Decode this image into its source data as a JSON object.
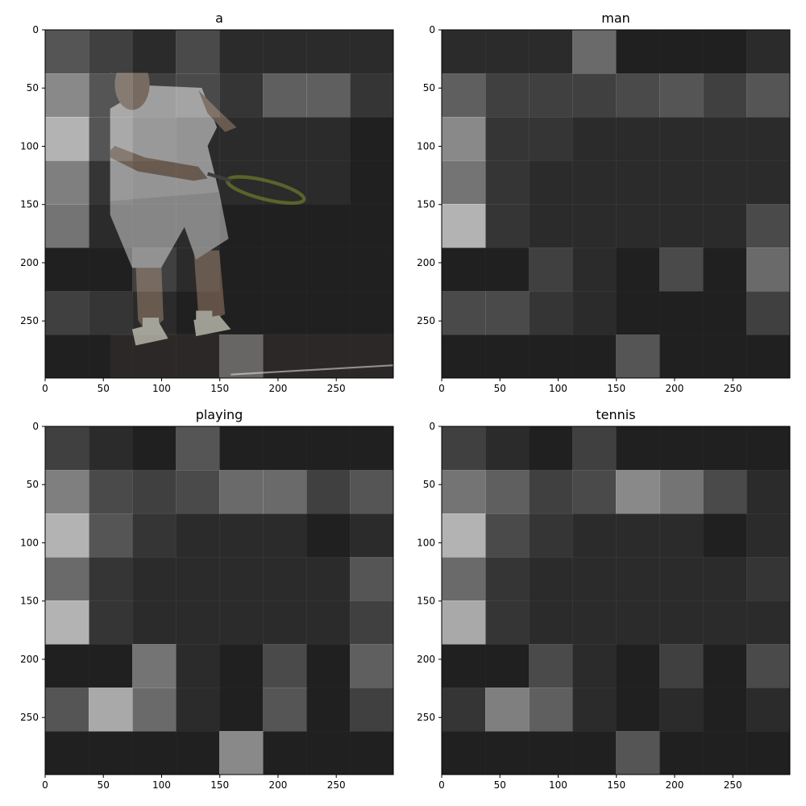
{
  "chart_data": [
    {
      "type": "heatmap",
      "title": "a",
      "xlabel": "",
      "ylabel": "",
      "xlim": [
        0,
        299
      ],
      "ylim": [
        299,
        0
      ],
      "xticks": [
        "0",
        "50",
        "100",
        "150",
        "200",
        "250"
      ],
      "yticks": [
        "0",
        "50",
        "100",
        "150",
        "200",
        "250"
      ],
      "cell_grid_size": [
        8,
        8
      ],
      "cell_brightness": [
        [
          0.3,
          0.2,
          0.1,
          0.25,
          0.1,
          0.1,
          0.1,
          0.1
        ],
        [
          0.55,
          0.3,
          0.2,
          0.25,
          0.15,
          0.35,
          0.35,
          0.15
        ],
        [
          0.75,
          0.3,
          0.15,
          0.1,
          0.1,
          0.1,
          0.1,
          0.05
        ],
        [
          0.5,
          0.15,
          0.1,
          0.1,
          0.1,
          0.1,
          0.1,
          0.05
        ],
        [
          0.45,
          0.1,
          0.1,
          0.1,
          0.05,
          0.05,
          0.05,
          0.05
        ],
        [
          0.05,
          0.05,
          0.2,
          0.1,
          0.05,
          0.05,
          0.05,
          0.05
        ],
        [
          0.2,
          0.15,
          0.1,
          0.05,
          0.05,
          0.05,
          0.05,
          0.05
        ],
        [
          0.05,
          0.05,
          0.05,
          0.05,
          0.35,
          0.05,
          0.05,
          0.05
        ]
      ]
    },
    {
      "type": "heatmap",
      "title": "man",
      "xlabel": "",
      "ylabel": "",
      "xlim": [
        0,
        299
      ],
      "ylim": [
        299,
        0
      ],
      "xticks": [
        "0",
        "50",
        "100",
        "150",
        "200",
        "250"
      ],
      "yticks": [
        "0",
        "50",
        "100",
        "150",
        "200",
        "250"
      ],
      "cell_grid_size": [
        8,
        8
      ],
      "cell_brightness": [
        [
          0.1,
          0.1,
          0.1,
          0.4,
          0.05,
          0.05,
          0.05,
          0.1
        ],
        [
          0.35,
          0.2,
          0.2,
          0.2,
          0.25,
          0.3,
          0.2,
          0.3
        ],
        [
          0.55,
          0.15,
          0.15,
          0.1,
          0.1,
          0.1,
          0.1,
          0.1
        ],
        [
          0.45,
          0.15,
          0.1,
          0.1,
          0.1,
          0.1,
          0.1,
          0.1
        ],
        [
          0.75,
          0.15,
          0.1,
          0.1,
          0.1,
          0.1,
          0.1,
          0.25
        ],
        [
          0.05,
          0.05,
          0.2,
          0.1,
          0.05,
          0.25,
          0.05,
          0.4
        ],
        [
          0.25,
          0.25,
          0.15,
          0.1,
          0.05,
          0.05,
          0.05,
          0.2
        ],
        [
          0.05,
          0.05,
          0.05,
          0.05,
          0.3,
          0.05,
          0.05,
          0.05
        ]
      ]
    },
    {
      "type": "heatmap",
      "title": "playing",
      "xlabel": "",
      "ylabel": "",
      "xlim": [
        0,
        299
      ],
      "ylim": [
        299,
        0
      ],
      "xticks": [
        "0",
        "50",
        "100",
        "150",
        "200",
        "250"
      ],
      "yticks": [
        "0",
        "50",
        "100",
        "150",
        "200",
        "250"
      ],
      "cell_grid_size": [
        8,
        8
      ],
      "cell_brightness": [
        [
          0.2,
          0.1,
          0.05,
          0.3,
          0.05,
          0.05,
          0.05,
          0.05
        ],
        [
          0.5,
          0.25,
          0.2,
          0.25,
          0.4,
          0.4,
          0.2,
          0.3
        ],
        [
          0.75,
          0.3,
          0.15,
          0.1,
          0.1,
          0.1,
          0.05,
          0.1
        ],
        [
          0.4,
          0.15,
          0.1,
          0.1,
          0.1,
          0.1,
          0.1,
          0.3
        ],
        [
          0.75,
          0.15,
          0.1,
          0.1,
          0.1,
          0.1,
          0.1,
          0.2
        ],
        [
          0.05,
          0.05,
          0.45,
          0.1,
          0.05,
          0.25,
          0.05,
          0.35
        ],
        [
          0.3,
          0.7,
          0.4,
          0.1,
          0.05,
          0.3,
          0.05,
          0.2
        ],
        [
          0.05,
          0.05,
          0.05,
          0.05,
          0.55,
          0.05,
          0.05,
          0.05
        ]
      ]
    },
    {
      "type": "heatmap",
      "title": "tennis",
      "xlabel": "",
      "ylabel": "",
      "xlim": [
        0,
        299
      ],
      "ylim": [
        299,
        0
      ],
      "xticks": [
        "0",
        "50",
        "100",
        "150",
        "200",
        "250"
      ],
      "yticks": [
        "0",
        "50",
        "100",
        "150",
        "200",
        "250"
      ],
      "cell_grid_size": [
        8,
        8
      ],
      "cell_brightness": [
        [
          0.2,
          0.1,
          0.05,
          0.2,
          0.05,
          0.05,
          0.05,
          0.05
        ],
        [
          0.45,
          0.35,
          0.2,
          0.25,
          0.55,
          0.45,
          0.25,
          0.1
        ],
        [
          0.75,
          0.25,
          0.15,
          0.1,
          0.1,
          0.1,
          0.05,
          0.1
        ],
        [
          0.4,
          0.15,
          0.1,
          0.1,
          0.1,
          0.1,
          0.1,
          0.15
        ],
        [
          0.7,
          0.15,
          0.1,
          0.1,
          0.1,
          0.1,
          0.1,
          0.1
        ],
        [
          0.05,
          0.05,
          0.25,
          0.1,
          0.05,
          0.2,
          0.05,
          0.25
        ],
        [
          0.15,
          0.5,
          0.35,
          0.1,
          0.05,
          0.1,
          0.05,
          0.1
        ],
        [
          0.05,
          0.05,
          0.05,
          0.05,
          0.3,
          0.05,
          0.05,
          0.05
        ]
      ]
    }
  ],
  "photo_colors": {
    "background": "#161616",
    "court": "#241f1f",
    "shirt": "#8a8a8a",
    "shorts": "#7a7a7a",
    "skin": "#5a4a3e",
    "cap": "#9a9a94",
    "shoes": "#9a9a90",
    "racket": "#4b5416"
  }
}
